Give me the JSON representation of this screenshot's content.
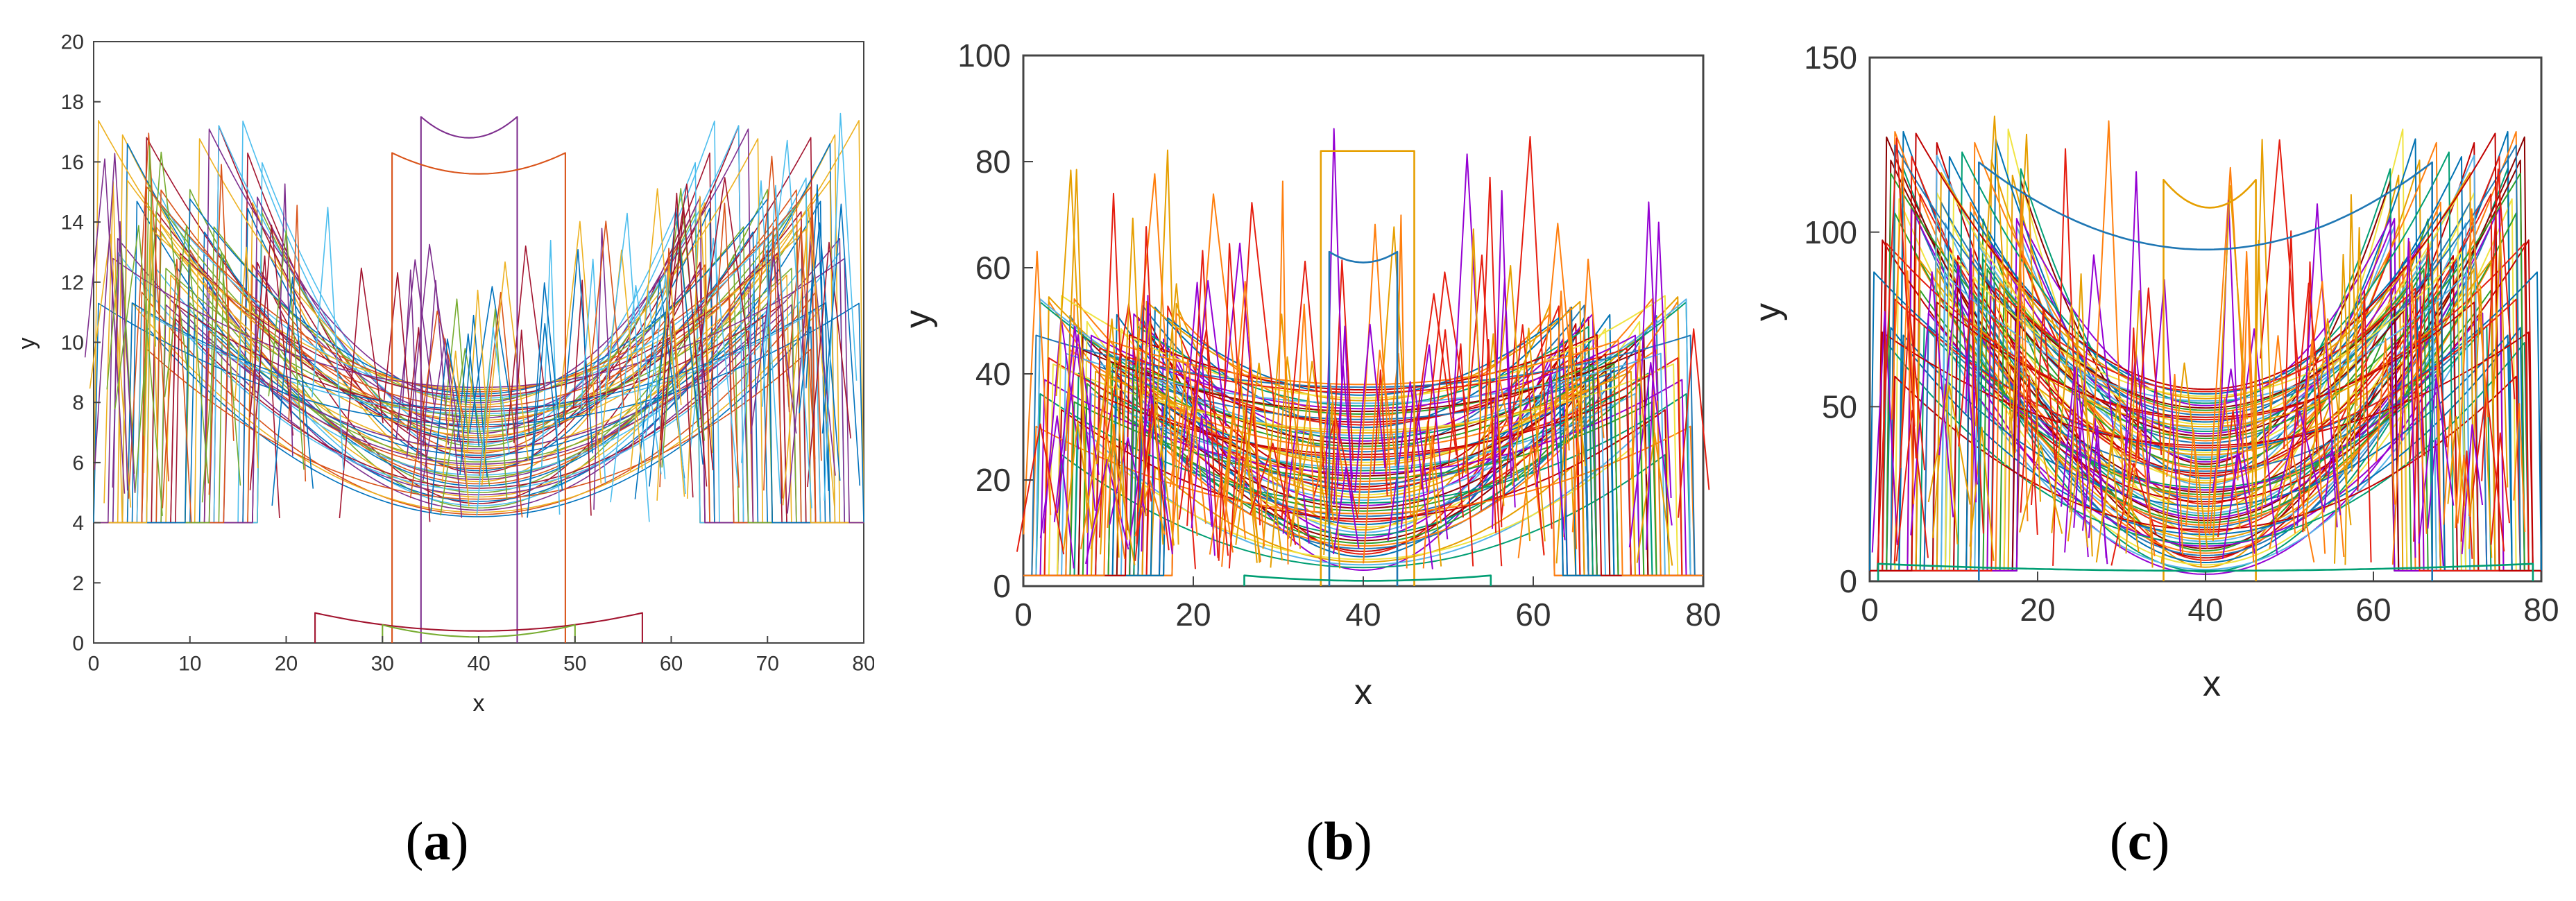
{
  "chart_data": [
    {
      "type": "line",
      "panel": "a",
      "caption_open": "(",
      "caption_letter": "a",
      "caption_close": ")",
      "xlabel": "x",
      "ylabel": "y",
      "xlim": [
        0,
        80
      ],
      "ylim": [
        0,
        20
      ],
      "xticks": [
        0,
        10,
        20,
        30,
        40,
        50,
        60,
        70,
        80
      ],
      "yticks": [
        0,
        2,
        4,
        6,
        8,
        10,
        12,
        14,
        16,
        18,
        20
      ],
      "style": "matlab",
      "families": {
        "bowls": {
          "count": 60,
          "center": 40,
          "min_low": 4.2,
          "min_high": 8.5,
          "edge_high": 17.5,
          "floor": 4
        },
        "spikes": {
          "count": 90,
          "peak_low": 9,
          "peak_high": 18,
          "base": 4
        },
        "box_curves": [
          {
            "x0": 34,
            "x1": 44,
            "y_edge": 17.5,
            "y_mid": 16.8
          },
          {
            "x0": 31,
            "x1": 49,
            "y_edge": 16.3,
            "y_mid": 15.6
          },
          {
            "x0": 23,
            "x1": 57,
            "y_edge": 1.0,
            "y_mid": 0.4
          },
          {
            "x0": 30,
            "x1": 50,
            "y_edge": 0.6,
            "y_mid": 0.2
          }
        ]
      }
    },
    {
      "type": "line",
      "panel": "b",
      "caption_open": "(",
      "caption_letter": "b",
      "caption_close": ")",
      "xlabel": "x",
      "ylabel": "y",
      "xlim": [
        0,
        80
      ],
      "ylim": [
        0,
        100
      ],
      "xticks": [
        0,
        20,
        40,
        60,
        80
      ],
      "yticks": [
        0,
        20,
        40,
        60,
        80,
        100
      ],
      "style": "gnuplot",
      "families": {
        "bowls": {
          "count": 70,
          "center": 40,
          "min_low": 3,
          "min_high": 38,
          "edge_high": 55,
          "floor": 2
        },
        "spikes": {
          "count": 110,
          "peak_low": 25,
          "peak_high": 88,
          "base": 3
        },
        "box_curves": [
          {
            "x0": 35,
            "x1": 46,
            "y_edge": 82,
            "y_mid": 82
          },
          {
            "x0": 36,
            "x1": 44,
            "y_edge": 63,
            "y_mid": 61
          },
          {
            "x0": 26,
            "x1": 55,
            "y_edge": 2,
            "y_mid": 1
          }
        ]
      }
    },
    {
      "type": "line",
      "panel": "c",
      "caption_open": "(",
      "caption_letter": "c",
      "caption_close": ")",
      "xlabel": "x",
      "ylabel": "y",
      "xlim": [
        0,
        80
      ],
      "ylim": [
        0,
        150
      ],
      "xticks": [
        0,
        20,
        40,
        60,
        80
      ],
      "yticks": [
        0,
        50,
        100,
        150
      ],
      "style": "gnuplot",
      "families": {
        "bowls": {
          "count": 80,
          "center": 40,
          "min_low": 2,
          "min_high": 55,
          "edge_high": 130,
          "floor": 3
        },
        "spikes": {
          "count": 90,
          "peak_low": 40,
          "peak_high": 135,
          "base": 3
        },
        "box_curves": [
          {
            "x0": 35,
            "x1": 46,
            "y_edge": 115,
            "y_mid": 107
          },
          {
            "x0": 13,
            "x1": 67,
            "y_edge": 120,
            "y_mid": 95
          },
          {
            "x0": 1,
            "x1": 79,
            "y_edge": 5,
            "y_mid": 3
          }
        ]
      }
    }
  ],
  "palette_matlab": [
    "#0072bd",
    "#d95319",
    "#edb120",
    "#7e2f8e",
    "#77ac30",
    "#4dbeee",
    "#a2142f"
  ],
  "palette_gnuplot": [
    "#9400d3",
    "#009e73",
    "#56b4e9",
    "#e69f00",
    "#f0e442",
    "#0072b2",
    "#e51e10",
    "#c00000",
    "#1f77b4",
    "#ff7f0e",
    "#2ca02c",
    "#8b0000"
  ]
}
